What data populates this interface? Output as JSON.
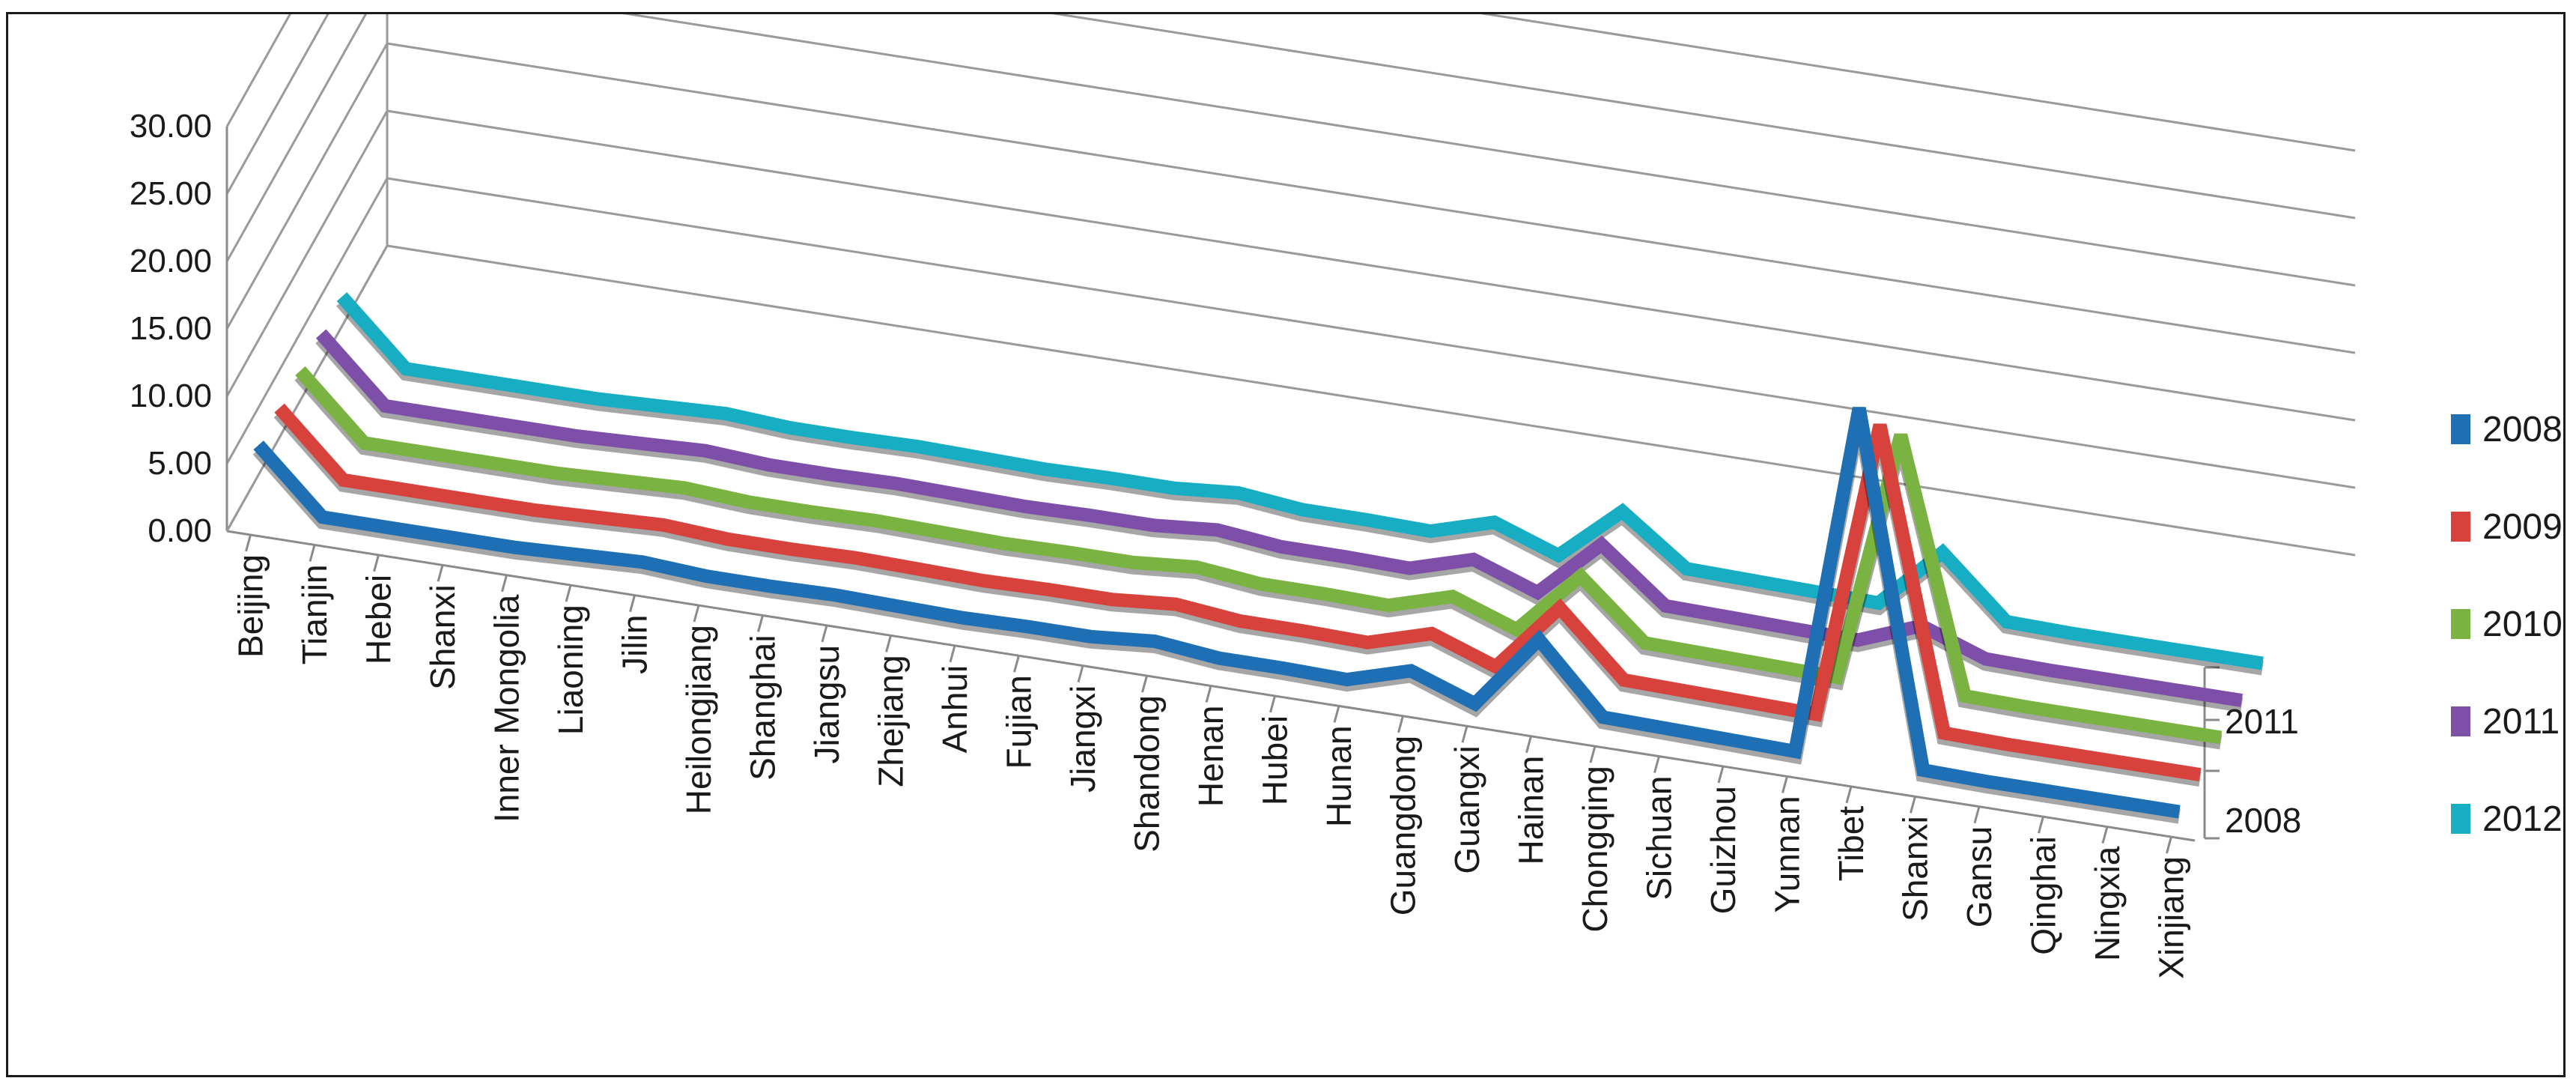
{
  "chart_data": {
    "type": "line",
    "chart_style": "3d-line",
    "categories": [
      "Beijing",
      "Tianjin",
      "Hebei",
      "Shanxi",
      "Inner Mongolia",
      "Liaoning",
      "Jilin",
      "Heilongjiang",
      "Shanghai",
      "Jiangsu",
      "Zhejiang",
      "Anhui",
      "Fujian",
      "Jiangxi",
      "Shandong",
      "Henan",
      "Hubei",
      "Hunan",
      "Guangdong",
      "Guangxi",
      "Hainan",
      "Chongqing",
      "Sichuan",
      "Guizhou",
      "Yunnan",
      "Tibet",
      "Shanxi",
      "Gansu",
      "Qinghai",
      "Ningxia",
      "Xinjiang"
    ],
    "series": [
      {
        "name": "2008",
        "color": "#1f6fb4",
        "values": [
          5.6,
          1.0,
          1.0,
          1.0,
          1.0,
          1.2,
          1.4,
          1.1,
          1.1,
          1.2,
          1.1,
          1.0,
          1.1,
          1.1,
          1.5,
          1.0,
          1.0,
          0.9,
          2.3,
          0.6,
          6.1,
          1.1,
          1.0,
          0.9,
          0.8,
          27.0,
          0.9,
          0.8,
          0.8,
          0.8,
          0.8
        ]
      },
      {
        "name": "2009",
        "color": "#d8423d",
        "values": [
          5.6,
          1.0,
          1.0,
          1.0,
          1.0,
          1.2,
          1.4,
          1.1,
          1.1,
          1.2,
          1.1,
          1.0,
          1.1,
          1.1,
          1.5,
          1.0,
          1.0,
          0.9,
          2.3,
          0.6,
          5.7,
          1.1,
          1.0,
          0.9,
          0.8,
          23.0,
          0.9,
          0.8,
          0.8,
          0.8,
          0.8
        ]
      },
      {
        "name": "2010",
        "color": "#7ab341",
        "values": [
          5.6,
          1.0,
          1.0,
          1.0,
          1.0,
          1.2,
          1.4,
          1.1,
          1.1,
          1.2,
          1.1,
          1.0,
          1.1,
          1.1,
          1.5,
          1.0,
          1.0,
          0.9,
          2.3,
          0.6,
          5.3,
          1.1,
          1.0,
          0.9,
          0.8,
          19.5,
          0.9,
          0.8,
          0.8,
          0.8,
          0.8
        ]
      },
      {
        "name": "2011",
        "color": "#7e4fa8",
        "values": [
          5.6,
          1.0,
          1.0,
          1.0,
          1.0,
          1.2,
          1.4,
          1.1,
          1.1,
          1.2,
          1.1,
          1.0,
          1.1,
          1.1,
          1.5,
          1.0,
          1.0,
          0.9,
          2.3,
          0.6,
          4.9,
          1.1,
          1.0,
          0.9,
          0.8,
          2.6,
          0.9,
          0.8,
          0.8,
          0.8,
          0.8
        ]
      },
      {
        "name": "2012",
        "color": "#17aec3",
        "values": [
          5.6,
          1.0,
          1.0,
          1.0,
          1.0,
          1.2,
          1.4,
          1.1,
          1.1,
          1.2,
          1.1,
          1.0,
          1.1,
          1.1,
          1.5,
          1.0,
          1.0,
          0.9,
          2.3,
          0.6,
          4.6,
          1.1,
          1.0,
          0.9,
          0.8,
          5.3,
          0.9,
          0.8,
          0.8,
          0.8,
          0.8
        ]
      }
    ],
    "y_ticks": [
      "0.00",
      "5.00",
      "10.00",
      "15.00",
      "20.00",
      "25.00",
      "30.00"
    ],
    "ylim": [
      0,
      30
    ],
    "depth_ticks": [
      "2011",
      "2008"
    ],
    "xlabel": "",
    "ylabel": "",
    "grid": true,
    "legend": {
      "position": "right",
      "entries": [
        "2008",
        "2009",
        "2010",
        "2011",
        "2012"
      ]
    }
  }
}
